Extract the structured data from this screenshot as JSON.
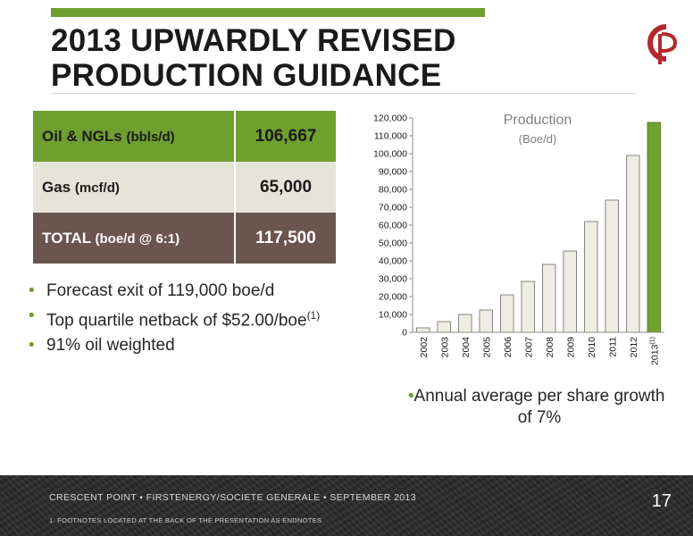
{
  "slide": {
    "title_line1": "2013 UPWARDLY REVISED",
    "title_line2": "PRODUCTION GUIDANCE",
    "page_number": "17"
  },
  "colors": {
    "accent_green": "#6f9f2f",
    "brown": "#6b554e",
    "beige": "#e6e3d8",
    "bar_fill": "#efece3"
  },
  "table": {
    "rows": [
      {
        "label": "Oil & NGLs",
        "unit": "(bbls/d)",
        "value": "106,667"
      },
      {
        "label": "Gas",
        "unit": "(mcf/d)",
        "value": "65,000"
      },
      {
        "label": "TOTAL",
        "unit": "(boe/d @ 6:1)",
        "value": "117,500"
      }
    ]
  },
  "bullets": {
    "b1": "Forecast exit of 119,000 boe/d",
    "b2_text": "Top quartile netback of $52.00/boe",
    "b2_sup": "(1)",
    "b3": "91% oil weighted",
    "marker": "•"
  },
  "chart_data": {
    "type": "bar",
    "title": "Production",
    "subtitle": "(Boe/d)",
    "categories": [
      "2002",
      "2003",
      "2004",
      "2005",
      "2006",
      "2007",
      "2008",
      "2009",
      "2010",
      "2011",
      "2012",
      "2013"
    ],
    "last_category_sup": "(1)",
    "values": [
      2500,
      6000,
      10000,
      12500,
      21000,
      28500,
      38000,
      45500,
      62000,
      74000,
      99000,
      117500
    ],
    "highlight_last": true,
    "ylim": [
      0,
      120000
    ],
    "yticks": [
      "0",
      "10,000",
      "20,000",
      "30,000",
      "40,000",
      "50,000",
      "60,000",
      "70,000",
      "80,000",
      "90,000",
      "100,000",
      "110,000",
      "120,000"
    ],
    "grid": false
  },
  "chart_note": "Annual average per share growth of 7%",
  "footer": {
    "text": "CRESCENT POINT  •  FIRSTENERGY/SOCIETE GENERALE  •  SEPTEMBER 2013",
    "footnote": "1.     FOOTNOTES LOCATED AT THE BACK OF THE PRESENTATION AS ENDNOTES"
  },
  "icons": {
    "logo": "crescent-point-logo"
  }
}
